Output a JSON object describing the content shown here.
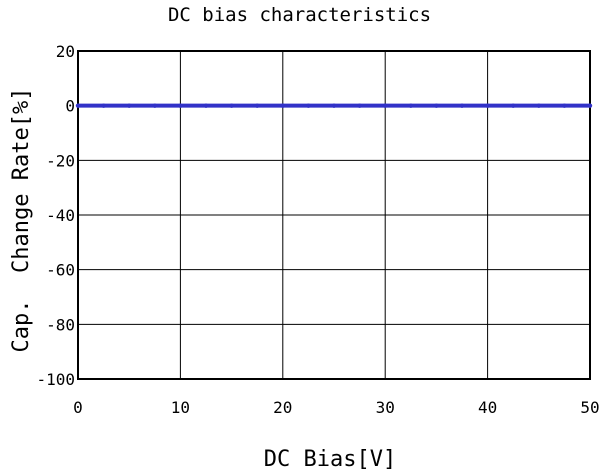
{
  "chart_data": {
    "type": "line",
    "title": "DC bias characteristics",
    "xlabel": "DC Bias[V]",
    "ylabel": "Cap.  Change Rate[%]",
    "xlim": [
      0,
      50
    ],
    "ylim": [
      -100,
      20
    ],
    "x_ticks": [
      0,
      10,
      20,
      30,
      40,
      50
    ],
    "y_ticks": [
      20,
      0,
      -20,
      -40,
      -60,
      -80,
      -100
    ],
    "grid": true,
    "series": [
      {
        "color": "#3232c8",
        "x": [
          0,
          2.5,
          5,
          7.5,
          10,
          12.5,
          15,
          17.5,
          20,
          22.5,
          25,
          27.5,
          30,
          32.5,
          35,
          37.5,
          40,
          42.5,
          45,
          47.5,
          50
        ],
        "y": [
          0,
          0,
          0,
          0,
          0,
          0,
          0,
          0,
          0,
          0,
          0,
          0,
          0,
          0,
          0,
          0,
          0,
          0,
          0,
          0,
          0
        ]
      }
    ]
  }
}
